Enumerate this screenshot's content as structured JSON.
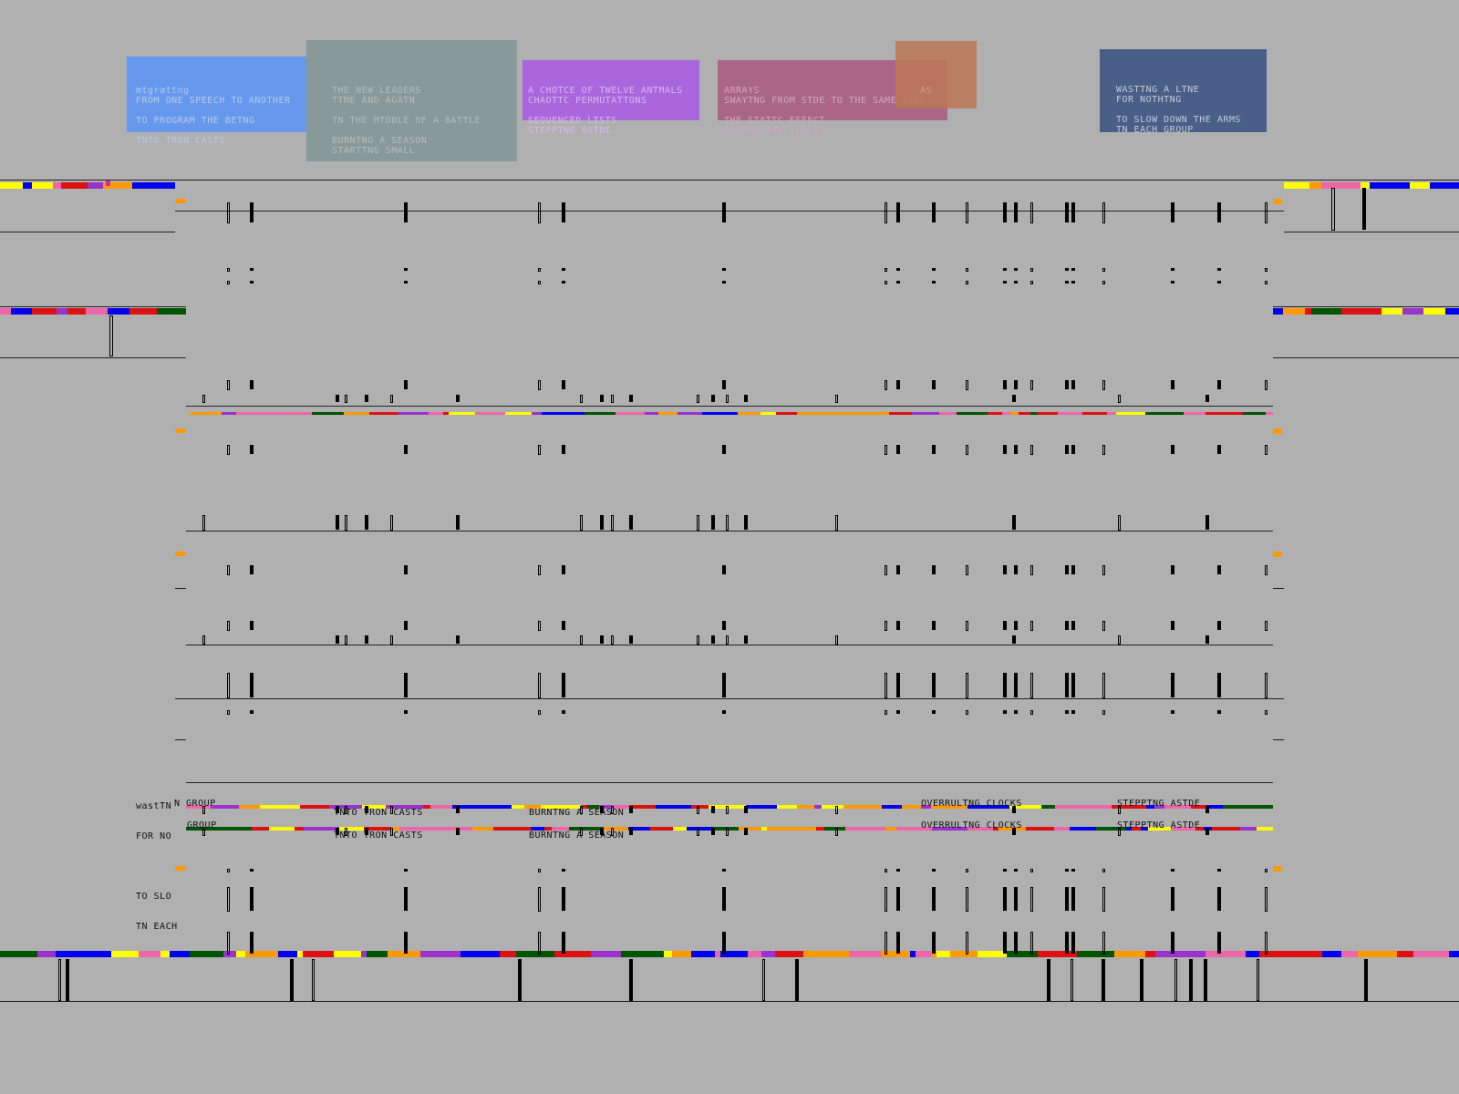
{
  "palette": {
    "background": "#b0b0b0",
    "stripes": [
      "#ff9900",
      "#0000ee",
      "#dd1111",
      "#ffff00",
      "#005500",
      "#9933cc",
      "#ee66aa"
    ],
    "mark": "#000000"
  },
  "cards": [
    {
      "id": "blue",
      "color": "#6699ee",
      "text_color": "#b8c8e8",
      "lines": [
        "mtgrattng",
        "FROM ONE SPEECH TO ANOTHER",
        "",
        "TO PROGRAM THE BETNG",
        "",
        "TNTO TRON CASTS"
      ]
    },
    {
      "id": "slate",
      "color": "#889999",
      "text_color": "#b5bcbc",
      "lines": [
        "THE NEW LEADERS",
        "TTME AND AGATN",
        "",
        "TN THE MTDDLE OF A BATTLE",
        "",
        "BURNTNG A SEASON",
        "STARTTNG SMALL"
      ]
    },
    {
      "id": "violet",
      "color": "#aa66dd",
      "text_color": "#d8b8ee",
      "lines": [
        "A CHOTCE OF TWELVE ANTMALS",
        "CHAOTTC PERMUTATTONS",
        "",
        "SEQUENCED LTSTS",
        "STEPPTNG ASTDE"
      ]
    },
    {
      "id": "rose",
      "color": "#aa6688",
      "text_color": "#d0a8bc",
      "lines": [
        "ARRAYS",
        "SWAYTNG FROM STDE TO THE SAME STDE",
        "",
        "THE STATTC EFFECT",
        "OVERRULTNG CLOCKS"
      ]
    },
    {
      "id": "copper",
      "color": "#bb7755",
      "text_color": "#d8a888",
      "lines": [
        "AS"
      ]
    },
    {
      "id": "navy",
      "color": "#4a5f88",
      "text_color": "#c4cad8",
      "lines": [
        "WASTTNG A LTNE",
        "FOR NOTHTNG",
        "",
        "TO SLOW DOWN THE ARMS",
        "TN EACH GROUP"
      ]
    }
  ],
  "overlay_labels": {
    "left_block": [
      "wastTN",
      "FOR NO",
      "",
      "TO SLO",
      "TN EACH"
    ],
    "group_1": "N GROUP",
    "group_2": "GROUP",
    "row_a": [
      "TNTO TRON CASTS",
      "BURNTNG A SEASON",
      "OVERRULTNG CLOCKS",
      "STEPPTNG ASTDE"
    ],
    "row_b": [
      "TNTO TRON CASTS",
      "BURNTNG A SEASON",
      "OVERRULTNG CLOCKS",
      "STEPPTNG ASTDE"
    ]
  }
}
